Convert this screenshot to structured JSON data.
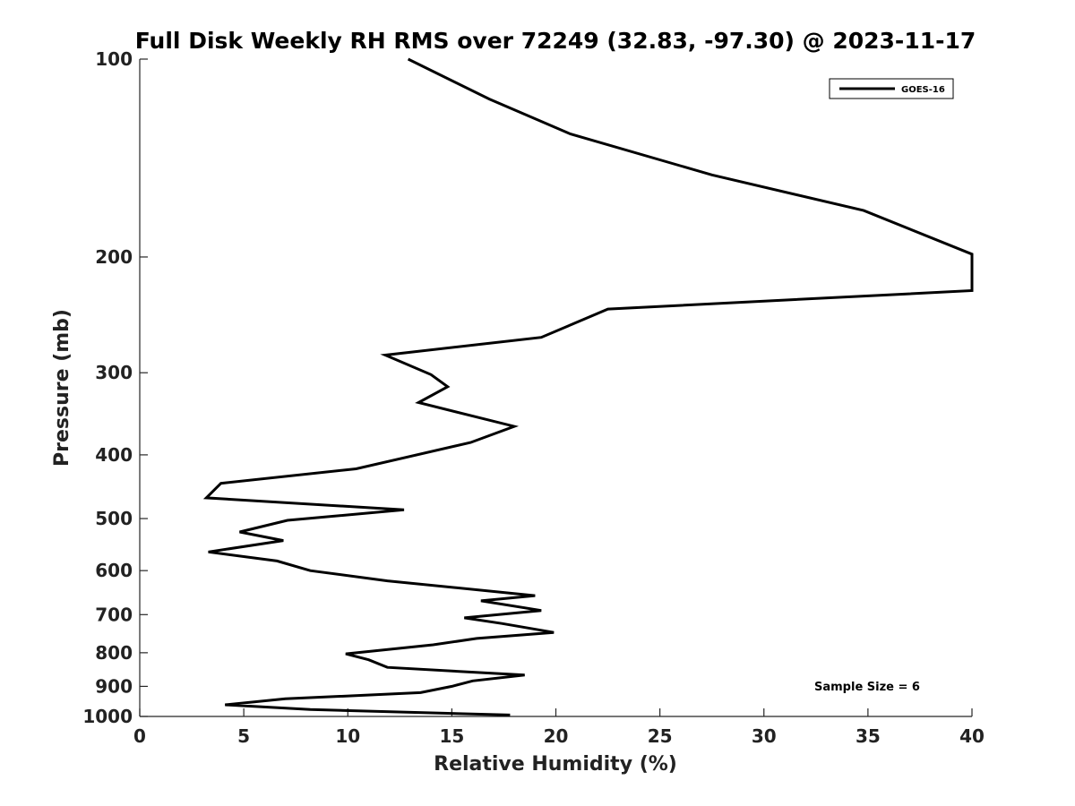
{
  "chart_data": {
    "type": "line",
    "title": "Full Disk Weekly RH RMS over 72249 (32.83, -97.30) @ 2023-11-17",
    "xlabel": "Relative Humidity (%)",
    "ylabel": "Pressure (mb)",
    "xlim": [
      0,
      40
    ],
    "ylim": [
      1000,
      100
    ],
    "yscale": "log",
    "x_ticks": [
      0,
      5,
      10,
      15,
      20,
      25,
      30,
      35,
      40
    ],
    "y_ticks": [
      100,
      200,
      300,
      400,
      500,
      600,
      700,
      800,
      900,
      1000
    ],
    "grid": false,
    "legend_position": "top-right",
    "annotation": "Sample Size = 6",
    "series": [
      {
        "name": "GOES-16",
        "color": "#000000",
        "x": [
          12.9,
          16.8,
          20.7,
          27.5,
          34.8,
          40.0,
          40.0,
          22.5,
          19.3,
          11.8,
          14.0,
          14.8,
          13.4,
          18.0,
          15.9,
          10.4,
          3.9,
          3.2,
          12.7,
          7.1,
          4.8,
          6.9,
          3.3,
          6.6,
          8.2,
          11.9,
          19.0,
          16.4,
          19.3,
          15.6,
          17.4,
          19.9,
          16.2,
          14.1,
          9.9,
          11.0,
          11.9,
          18.5,
          16.0,
          15.0,
          13.5,
          7.0,
          4.1,
          8.2,
          17.8
        ],
        "y": [
          100,
          115,
          130,
          150,
          170,
          198,
          225,
          240,
          265,
          282,
          302,
          315,
          333,
          362,
          383,
          420,
          442,
          465,
          485,
          503,
          524,
          540,
          562,
          580,
          600,
          622,
          655,
          667,
          690,
          708,
          722,
          745,
          761,
          778,
          803,
          820,
          842,
          865,
          883,
          900,
          920,
          940,
          960,
          976,
          995
        ]
      }
    ]
  }
}
